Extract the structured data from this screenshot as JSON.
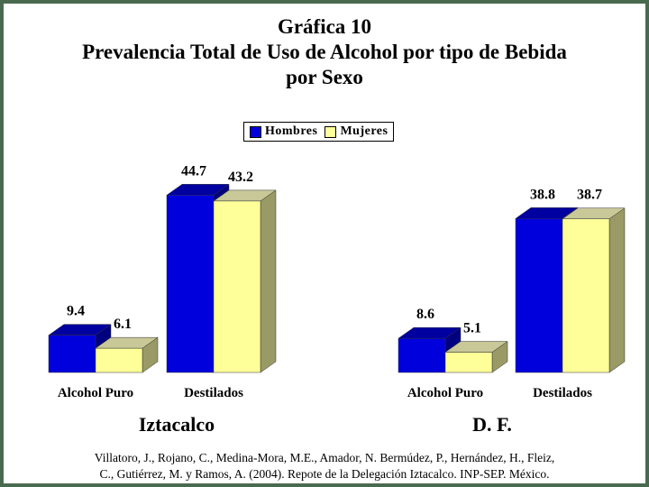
{
  "title": {
    "line1": "Gráfica 10",
    "line2": "Prevalencia Total de Uso de Alcohol por tipo de Bebida",
    "line3": "por Sexo"
  },
  "legend": {
    "hombres": "Hombres",
    "mujeres": "Mujeres"
  },
  "colors": {
    "hombres": "#0000dd",
    "mujeres": "#ffff99",
    "background": "#4a6a50"
  },
  "groups": {
    "left": "Iztacalco",
    "right": "D. F."
  },
  "chart_data": {
    "type": "bar",
    "series": [
      {
        "name": "Hombres",
        "values": [
          9.4,
          44.7,
          8.6,
          38.8
        ]
      },
      {
        "name": "Mujeres",
        "values": [
          6.1,
          43.2,
          5.1,
          38.7
        ]
      }
    ],
    "categories": [
      "Alcohol Puro",
      "Destilados",
      "Alcohol Puro",
      "Destilados"
    ],
    "category_groups": [
      "Iztacalco",
      "Iztacalco",
      "D. F.",
      "D. F."
    ],
    "legend_position": "top-center",
    "grid": false,
    "style": "3d"
  },
  "source": {
    "line1": "Villatoro, J., Rojano, C., Medina-Mora, M.E., Amador, N. Bermúdez, P., Hernández, H., Fleiz,",
    "line2": "C., Gutiérrez, M. y Ramos, A. (2004). Repote de la Delegación Iztacalco. INP-SEP. México."
  }
}
